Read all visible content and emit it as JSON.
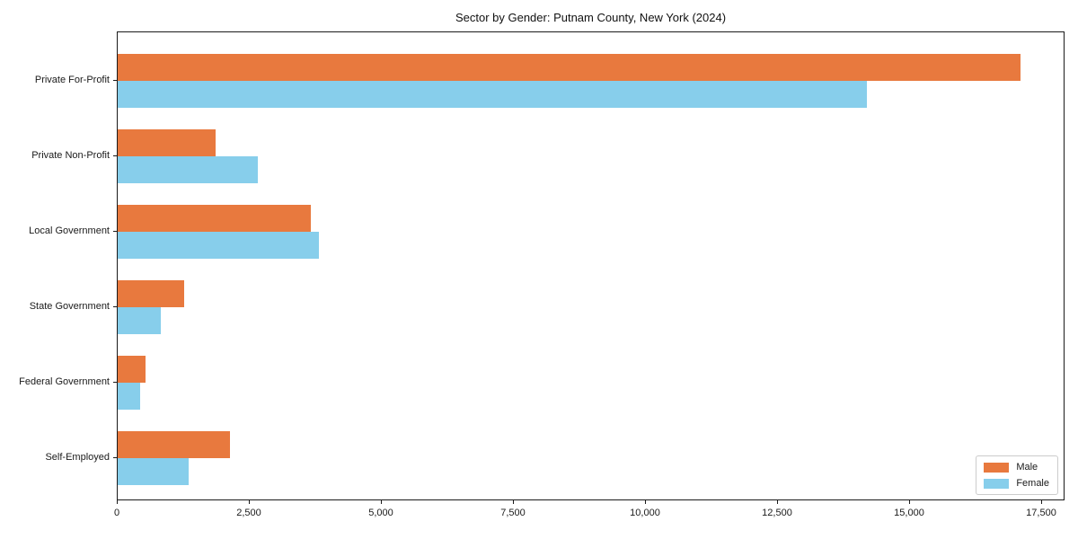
{
  "chart_data": {
    "type": "bar",
    "orientation": "horizontal",
    "title": "Sector by Gender: Putnam County, New York (2024)",
    "categories": [
      "Private For-Profit",
      "Private Non-Profit",
      "Local Government",
      "State Government",
      "Federal Government",
      "Self-Employed"
    ],
    "series": [
      {
        "name": "Male",
        "color": "#e8793e",
        "values": [
          17090,
          1850,
          3660,
          1260,
          530,
          2130
        ]
      },
      {
        "name": "Female",
        "color": "#87ceeb",
        "values": [
          14180,
          2650,
          3810,
          820,
          430,
          1340
        ]
      }
    ],
    "xlim": [
      0,
      17942
    ],
    "x_ticks": [
      0,
      2500,
      5000,
      7500,
      10000,
      12500,
      15000,
      17500
    ],
    "x_tick_labels": [
      "0",
      "2,500",
      "5,000",
      "7,500",
      "10,000",
      "12,500",
      "15,000",
      "17,500"
    ],
    "grid": false,
    "legend_position": "lower right",
    "axis_color": "#1a1a1a",
    "background_color": "#ffffff"
  }
}
